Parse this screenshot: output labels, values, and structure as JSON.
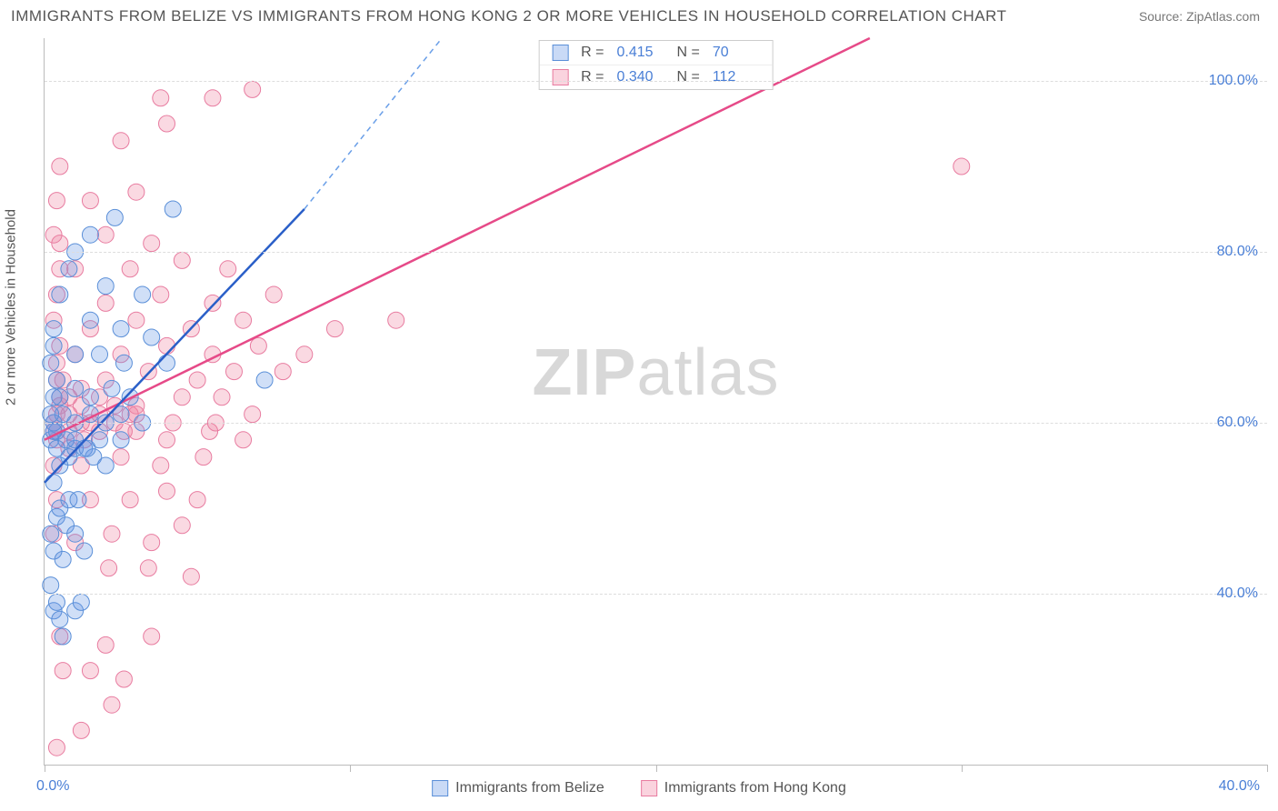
{
  "title": "IMMIGRANTS FROM BELIZE VS IMMIGRANTS FROM HONG KONG 2 OR MORE VEHICLES IN HOUSEHOLD CORRELATION CHART",
  "source": "Source: ZipAtlas.com",
  "y_axis_label": "2 or more Vehicles in Household",
  "watermark_a": "ZIP",
  "watermark_b": "atlas",
  "chart": {
    "type": "scatter",
    "background_color": "#ffffff",
    "grid_color": "#dddddd",
    "axis_color": "#bbbbbb",
    "tick_label_color": "#4a7fd6",
    "xlim": [
      0,
      40
    ],
    "ylim": [
      20,
      105
    ],
    "y_ticks": [
      40,
      60,
      80,
      100
    ],
    "y_tick_labels": [
      "40.0%",
      "60.0%",
      "80.0%",
      "100.0%"
    ],
    "x_ticks": [
      0,
      10,
      20,
      30,
      40
    ],
    "x_start_label": "0.0%",
    "x_end_label": "40.0%",
    "marker_radius": 9,
    "series": [
      {
        "name": "Immigrants from Belize",
        "color_fill": "rgba(100,150,230,0.30)",
        "color_stroke": "#5a8fd8",
        "line_color": "#2a5fc8",
        "R": "0.415",
        "N": "70",
        "trend": {
          "x1": 0,
          "y1": 53,
          "x2": 8.5,
          "y2": 85,
          "dash_to_x": 13,
          "dash_to_y": 105
        },
        "points": [
          [
            0.2,
            41
          ],
          [
            0.3,
            38
          ],
          [
            0.5,
            37
          ],
          [
            0.4,
            39
          ],
          [
            0.6,
            35
          ],
          [
            1.0,
            38
          ],
          [
            1.2,
            39
          ],
          [
            0.2,
            47
          ],
          [
            0.4,
            49
          ],
          [
            0.7,
            48
          ],
          [
            1.0,
            47
          ],
          [
            1.3,
            45
          ],
          [
            0.3,
            53
          ],
          [
            0.5,
            55
          ],
          [
            0.8,
            56
          ],
          [
            1.0,
            57
          ],
          [
            1.3,
            57
          ],
          [
            1.6,
            56
          ],
          [
            2.0,
            55
          ],
          [
            0.2,
            58
          ],
          [
            0.4,
            59
          ],
          [
            0.7,
            58
          ],
          [
            1.0,
            58
          ],
          [
            1.4,
            57
          ],
          [
            1.8,
            58
          ],
          [
            2.5,
            58
          ],
          [
            0.3,
            60
          ],
          [
            0.6,
            61
          ],
          [
            1.0,
            60
          ],
          [
            1.5,
            61
          ],
          [
            2.0,
            60
          ],
          [
            2.5,
            61
          ],
          [
            3.2,
            60
          ],
          [
            0.5,
            63
          ],
          [
            1.0,
            64
          ],
          [
            1.5,
            63
          ],
          [
            2.2,
            64
          ],
          [
            2.8,
            63
          ],
          [
            1.0,
            68
          ],
          [
            1.8,
            68
          ],
          [
            2.6,
            67
          ],
          [
            4.0,
            67
          ],
          [
            1.5,
            72
          ],
          [
            2.5,
            71
          ],
          [
            3.5,
            70
          ],
          [
            2.0,
            76
          ],
          [
            3.2,
            75
          ],
          [
            0.3,
            71
          ],
          [
            0.5,
            75
          ],
          [
            0.8,
            78
          ],
          [
            1.0,
            80
          ],
          [
            1.5,
            82
          ],
          [
            2.3,
            84
          ],
          [
            4.2,
            85
          ],
          [
            0.4,
            57
          ],
          [
            0.3,
            59
          ],
          [
            0.2,
            61
          ],
          [
            0.3,
            63
          ],
          [
            0.4,
            65
          ],
          [
            0.2,
            67
          ],
          [
            0.3,
            69
          ],
          [
            0.5,
            50
          ],
          [
            0.8,
            51
          ],
          [
            1.1,
            51
          ],
          [
            0.3,
            45
          ],
          [
            0.6,
            44
          ],
          [
            7.2,
            65
          ]
        ]
      },
      {
        "name": "Immigrants from Hong Kong",
        "color_fill": "rgba(240,130,160,0.30)",
        "color_stroke": "#e87ca0",
        "line_color": "#e64a88",
        "R": "0.340",
        "N": "112",
        "trend": {
          "x1": 0,
          "y1": 58,
          "x2": 27,
          "y2": 105
        },
        "points": [
          [
            0.4,
            22
          ],
          [
            1.2,
            24
          ],
          [
            2.2,
            27
          ],
          [
            0.6,
            31
          ],
          [
            1.5,
            31
          ],
          [
            2.6,
            30
          ],
          [
            0.5,
            35
          ],
          [
            2.0,
            34
          ],
          [
            3.5,
            35
          ],
          [
            2.1,
            43
          ],
          [
            3.4,
            43
          ],
          [
            4.8,
            42
          ],
          [
            0.3,
            47
          ],
          [
            1.0,
            46
          ],
          [
            2.2,
            47
          ],
          [
            3.5,
            46
          ],
          [
            0.4,
            51
          ],
          [
            1.5,
            51
          ],
          [
            2.8,
            51
          ],
          [
            4.0,
            52
          ],
          [
            5.0,
            51
          ],
          [
            0.3,
            55
          ],
          [
            1.2,
            55
          ],
          [
            2.5,
            56
          ],
          [
            3.8,
            55
          ],
          [
            5.2,
            56
          ],
          [
            4.5,
            48
          ],
          [
            0.4,
            58
          ],
          [
            1.3,
            58
          ],
          [
            2.6,
            59
          ],
          [
            4.0,
            58
          ],
          [
            5.4,
            59
          ],
          [
            6.5,
            58
          ],
          [
            0.3,
            60
          ],
          [
            1.5,
            60
          ],
          [
            2.8,
            61
          ],
          [
            4.2,
            60
          ],
          [
            5.6,
            60
          ],
          [
            6.8,
            61
          ],
          [
            0.5,
            62
          ],
          [
            1.8,
            63
          ],
          [
            3.0,
            62
          ],
          [
            4.5,
            63
          ],
          [
            5.8,
            63
          ],
          [
            0.4,
            65
          ],
          [
            2.0,
            65
          ],
          [
            3.4,
            66
          ],
          [
            5.0,
            65
          ],
          [
            6.2,
            66
          ],
          [
            7.8,
            66
          ],
          [
            1.0,
            68
          ],
          [
            2.5,
            68
          ],
          [
            4.0,
            69
          ],
          [
            5.5,
            68
          ],
          [
            7.0,
            69
          ],
          [
            8.5,
            68
          ],
          [
            1.5,
            71
          ],
          [
            3.0,
            72
          ],
          [
            4.8,
            71
          ],
          [
            6.5,
            72
          ],
          [
            9.5,
            71
          ],
          [
            11.5,
            72
          ],
          [
            2.0,
            74
          ],
          [
            3.8,
            75
          ],
          [
            5.5,
            74
          ],
          [
            7.5,
            75
          ],
          [
            1.0,
            78
          ],
          [
            2.8,
            78
          ],
          [
            4.5,
            79
          ],
          [
            6.0,
            78
          ],
          [
            0.5,
            81
          ],
          [
            2.0,
            82
          ],
          [
            3.5,
            81
          ],
          [
            1.5,
            86
          ],
          [
            3.0,
            87
          ],
          [
            2.5,
            93
          ],
          [
            4.0,
            95
          ],
          [
            3.8,
            98
          ],
          [
            5.5,
            98
          ],
          [
            6.8,
            99
          ],
          [
            0.3,
            59
          ],
          [
            0.4,
            61
          ],
          [
            0.5,
            63
          ],
          [
            0.6,
            65
          ],
          [
            0.4,
            67
          ],
          [
            0.5,
            69
          ],
          [
            0.3,
            72
          ],
          [
            0.4,
            75
          ],
          [
            0.5,
            78
          ],
          [
            0.3,
            82
          ],
          [
            0.4,
            86
          ],
          [
            0.5,
            90
          ],
          [
            1.2,
            60
          ],
          [
            1.2,
            62
          ],
          [
            1.2,
            64
          ],
          [
            0.8,
            59
          ],
          [
            0.8,
            61
          ],
          [
            0.8,
            63
          ],
          [
            0.8,
            57
          ],
          [
            1.8,
            59
          ],
          [
            1.8,
            61
          ],
          [
            2.3,
            60
          ],
          [
            2.3,
            62
          ],
          [
            3.0,
            59
          ],
          [
            3.0,
            61
          ],
          [
            30.0,
            90
          ]
        ]
      }
    ]
  },
  "bottom_legend": [
    {
      "swatch": "blue",
      "label": "Immigrants from Belize"
    },
    {
      "swatch": "pink",
      "label": "Immigrants from Hong Kong"
    }
  ]
}
